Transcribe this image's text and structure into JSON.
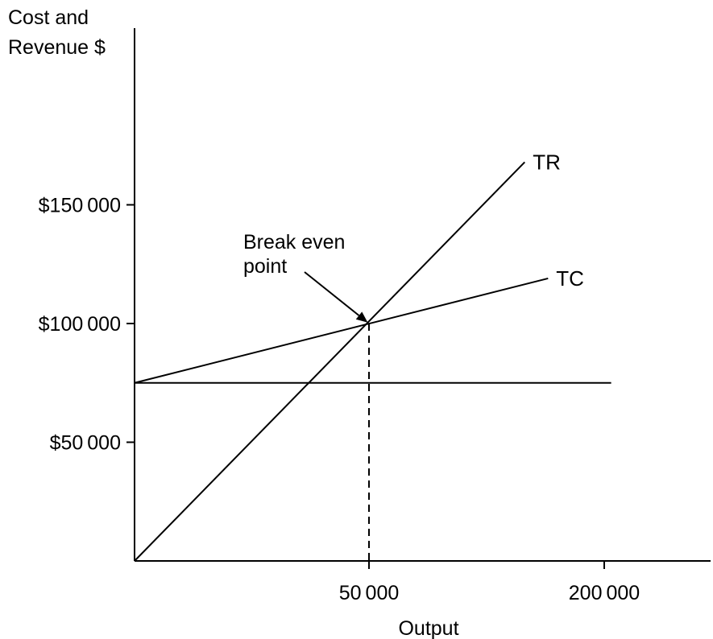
{
  "chart_data": {
    "type": "line",
    "ylabel_lines": [
      "Cost and",
      "Revenue $"
    ],
    "xlabel": "Output",
    "x_ticks": [
      {
        "value": 50000,
        "label": "50 000"
      },
      {
        "value": 200000,
        "label": "200 000"
      }
    ],
    "y_ticks": [
      {
        "value": 50000,
        "label": "$50 000"
      },
      {
        "value": 100000,
        "label": "$100 000"
      },
      {
        "value": 150000,
        "label": "$150 000"
      }
    ],
    "series": [
      {
        "name": "TR",
        "points": [
          [
            0,
            0
          ],
          [
            83500,
            168000
          ]
        ]
      },
      {
        "name": "TC",
        "points": [
          [
            0,
            75000
          ],
          [
            88500,
            119000
          ]
        ]
      },
      {
        "name": "",
        "points": [
          [
            0,
            75000
          ],
          [
            102000,
            75000
          ]
        ]
      }
    ],
    "break_even": {
      "x": 50000,
      "y": 100000,
      "label_lines": [
        "Break even",
        "point"
      ]
    },
    "grid": false,
    "legend": "none"
  }
}
